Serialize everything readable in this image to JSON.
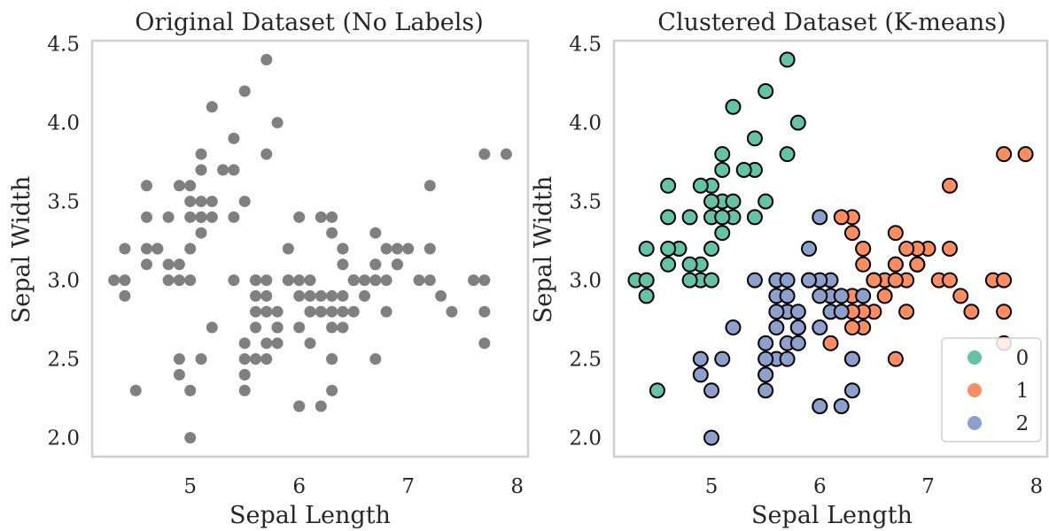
{
  "colors": {
    "unlabeled": "#808080",
    "cluster_0": "#66c2a5",
    "cluster_1": "#fc8d62",
    "cluster_2": "#8da0cb",
    "edge": "#000000",
    "frame": "#d0d0d0"
  },
  "chart_data": [
    {
      "type": "scatter",
      "title": "Original Dataset (No Labels)",
      "xlabel": "Sepal Length",
      "ylabel": "Sepal Width",
      "xlim": [
        4.1,
        8.1
      ],
      "ylim": [
        1.88,
        4.52
      ],
      "xticks": [
        5,
        6,
        7,
        8
      ],
      "yticks": [
        2.0,
        2.5,
        3.0,
        3.5,
        4.0,
        4.5
      ],
      "grid": false,
      "legend": null
    },
    {
      "type": "scatter",
      "title": "Clustered Dataset (K-means)",
      "xlabel": "Sepal Length",
      "ylabel": "Sepal Width",
      "xlim": [
        4.1,
        8.1
      ],
      "ylim": [
        1.88,
        4.52
      ],
      "xticks": [
        5,
        6,
        7,
        8
      ],
      "yticks": [
        2.0,
        2.5,
        3.0,
        3.5,
        4.0,
        4.5
      ],
      "grid": false,
      "legend_position": "lower right",
      "series": [
        {
          "name": "0",
          "points": [
            [
              5.1,
              3.5
            ],
            [
              4.9,
              3.0
            ],
            [
              4.7,
              3.2
            ],
            [
              4.6,
              3.1
            ],
            [
              5.0,
              3.6
            ],
            [
              5.4,
              3.9
            ],
            [
              4.6,
              3.4
            ],
            [
              5.0,
              3.4
            ],
            [
              4.4,
              2.9
            ],
            [
              4.9,
              3.1
            ],
            [
              5.4,
              3.7
            ],
            [
              4.8,
              3.4
            ],
            [
              4.8,
              3.0
            ],
            [
              4.3,
              3.0
            ],
            [
              5.8,
              4.0
            ],
            [
              5.7,
              4.4
            ],
            [
              5.1,
              3.8
            ],
            [
              5.7,
              3.8
            ],
            [
              5.1,
              3.7
            ],
            [
              4.6,
              3.6
            ],
            [
              5.1,
              3.3
            ],
            [
              5.0,
              3.0
            ],
            [
              5.2,
              3.5
            ],
            [
              5.2,
              3.4
            ],
            [
              4.7,
              3.2
            ],
            [
              5.5,
              4.2
            ],
            [
              4.4,
              3.0
            ],
            [
              5.1,
              3.4
            ],
            [
              5.0,
              3.5
            ],
            [
              4.5,
              2.3
            ],
            [
              4.4,
              3.2
            ],
            [
              5.3,
              3.7
            ],
            [
              5.2,
              4.1
            ],
            [
              5.5,
              3.5
            ],
            [
              4.9,
              3.6
            ],
            [
              4.8,
              3.1
            ],
            [
              5.4,
              3.4
            ],
            [
              4.6,
              3.2
            ],
            [
              5.0,
              3.2
            ],
            [
              5.1,
              3.4
            ]
          ]
        },
        {
          "name": "1",
          "points": [
            [
              7.0,
              3.2
            ],
            [
              6.4,
              3.2
            ],
            [
              6.9,
              3.1
            ],
            [
              6.5,
              2.8
            ],
            [
              6.7,
              3.1
            ],
            [
              6.3,
              2.5
            ],
            [
              6.6,
              3.0
            ],
            [
              6.8,
              2.8
            ],
            [
              6.7,
              3.0
            ],
            [
              6.3,
              3.3
            ],
            [
              6.5,
              3.0
            ],
            [
              7.1,
              3.0
            ],
            [
              7.6,
              3.0
            ],
            [
              7.3,
              2.9
            ],
            [
              6.7,
              2.5
            ],
            [
              7.2,
              3.6
            ],
            [
              6.4,
              2.7
            ],
            [
              6.8,
              3.0
            ],
            [
              6.4,
              3.2
            ],
            [
              6.5,
              3.0
            ],
            [
              7.7,
              3.8
            ],
            [
              7.7,
              2.6
            ],
            [
              6.9,
              3.2
            ],
            [
              7.7,
              2.8
            ],
            [
              6.7,
              3.3
            ],
            [
              7.2,
              3.2
            ],
            [
              6.2,
              2.8
            ],
            [
              6.4,
              2.8
            ],
            [
              7.2,
              3.0
            ],
            [
              7.4,
              2.8
            ],
            [
              7.9,
              3.8
            ],
            [
              6.3,
              2.8
            ],
            [
              6.1,
              2.6
            ],
            [
              7.7,
              3.0
            ],
            [
              6.3,
              3.4
            ],
            [
              6.4,
              3.1
            ],
            [
              6.9,
              3.1
            ],
            [
              6.7,
              3.1
            ],
            [
              6.9,
              3.1
            ],
            [
              6.8,
              3.2
            ],
            [
              6.5,
              3.0
            ],
            [
              6.2,
              3.4
            ],
            [
              6.3,
              2.9
            ],
            [
              6.6,
              2.9
            ],
            [
              6.7,
              3.0
            ],
            [
              6.3,
              2.7
            ]
          ]
        },
        {
          "name": "2",
          "points": [
            [
              5.5,
              2.3
            ],
            [
              5.7,
              2.8
            ],
            [
              4.9,
              2.4
            ],
            [
              5.2,
              2.7
            ],
            [
              5.0,
              2.0
            ],
            [
              5.9,
              3.0
            ],
            [
              6.0,
              2.2
            ],
            [
              6.1,
              2.9
            ],
            [
              5.6,
              2.9
            ],
            [
              5.6,
              3.0
            ],
            [
              5.8,
              2.7
            ],
            [
              6.2,
              2.2
            ],
            [
              5.6,
              2.5
            ],
            [
              5.9,
              3.2
            ],
            [
              6.1,
              2.8
            ],
            [
              6.1,
              2.8
            ],
            [
              6.4,
              2.9
            ],
            [
              5.7,
              2.6
            ],
            [
              5.5,
              2.4
            ],
            [
              5.5,
              2.4
            ],
            [
              5.8,
              2.7
            ],
            [
              6.0,
              2.7
            ],
            [
              5.4,
              3.0
            ],
            [
              6.0,
              3.4
            ],
            [
              5.6,
              3.0
            ],
            [
              5.5,
              2.5
            ],
            [
              5.5,
              2.6
            ],
            [
              6.1,
              3.0
            ],
            [
              5.8,
              2.6
            ],
            [
              5.0,
              2.3
            ],
            [
              5.6,
              2.7
            ],
            [
              5.7,
              3.0
            ],
            [
              5.7,
              2.9
            ],
            [
              6.2,
              2.9
            ],
            [
              5.1,
              2.5
            ],
            [
              5.7,
              2.8
            ],
            [
              5.8,
              2.8
            ],
            [
              4.9,
              2.5
            ],
            [
              6.0,
              2.2
            ],
            [
              5.6,
              2.8
            ],
            [
              6.3,
              2.5
            ],
            [
              6.0,
              3.0
            ],
            [
              5.8,
              2.7
            ],
            [
              6.2,
              2.8
            ],
            [
              5.9,
              3.0
            ],
            [
              6.0,
              2.9
            ],
            [
              5.7,
              2.5
            ],
            [
              6.3,
              2.3
            ]
          ]
        }
      ]
    }
  ]
}
